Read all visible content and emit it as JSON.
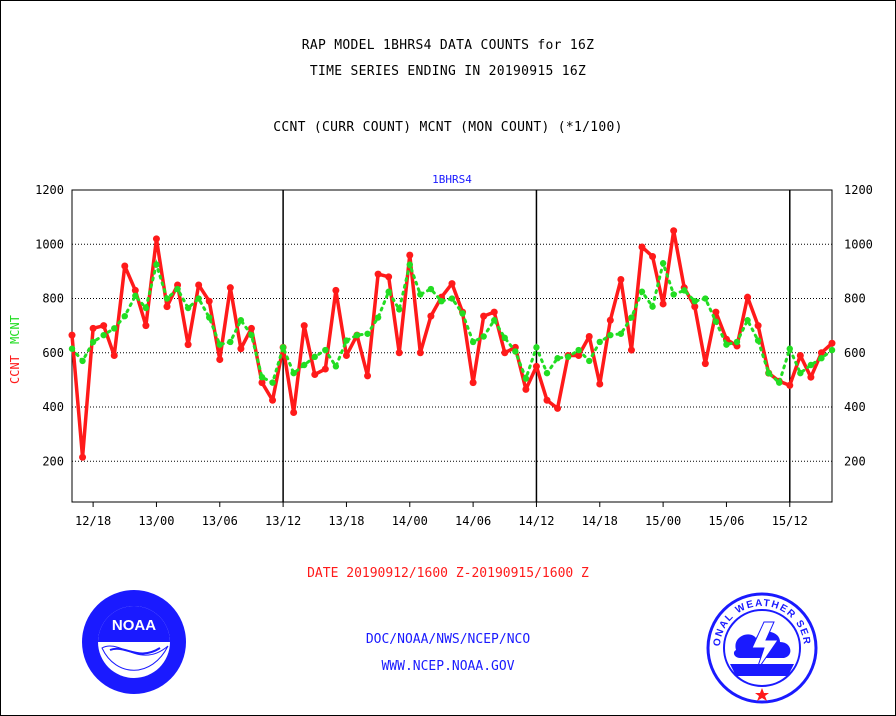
{
  "header": {
    "line1": "RAP MODEL 1BHRS4 DATA COUNTS for 16Z",
    "line2": "TIME SERIES ENDING IN 20190915 16Z",
    "line3": "CCNT (CURR COUNT) MCNT (MON COUNT) (*1/100)"
  },
  "footer": {
    "date_range": "DATE 20190912/1600 Z-20190915/1600 Z",
    "org": "DOC/NOAA/NWS/NCEP/NCO",
    "url": "WWW.NCEP.NOAA.GOV"
  },
  "logos": {
    "noaa_text": "NOAA",
    "nws_text": "NATIONAL WEATHER SERVICE"
  },
  "colors": {
    "ccnt": "#ff1a1a",
    "mcnt": "#22dd22",
    "title_blue": "#1a1aff",
    "grid": "#000000"
  },
  "chart_data": {
    "type": "line",
    "title": "1BHRS4",
    "ylabel_left_ccnt": "CCNT",
    "ylabel_left_mcnt": "MCNT",
    "ylim": [
      50,
      1200
    ],
    "yticks": [
      200,
      400,
      600,
      800,
      1000,
      1200
    ],
    "x_tick_labels": [
      "12/18",
      "13/00",
      "13/06",
      "13/12",
      "13/18",
      "14/00",
      "14/06",
      "14/12",
      "14/18",
      "15/00",
      "15/06",
      "15/12"
    ],
    "x_tick_hours": [
      2,
      8,
      14,
      20,
      26,
      32,
      38,
      44,
      50,
      56,
      62,
      68
    ],
    "major_vlines_hours": [
      20,
      44,
      68
    ],
    "x_range_hours": [
      0,
      72
    ],
    "x_start": "20190912 16Z",
    "series": [
      {
        "name": "CCNT",
        "color": "#ff1a1a",
        "style": "solid",
        "values": [
          665,
          215,
          690,
          700,
          590,
          920,
          830,
          700,
          1020,
          770,
          850,
          630,
          850,
          790,
          575,
          840,
          615,
          690,
          490,
          425,
          620,
          380,
          700,
          520,
          540,
          830,
          590,
          665,
          515,
          890,
          880,
          600,
          960,
          600,
          735,
          805,
          855,
          750,
          490,
          735,
          750,
          600,
          620,
          465,
          550,
          425,
          395,
          590,
          590,
          660,
          485,
          720,
          870,
          610,
          990,
          955,
          780,
          1050,
          840,
          770,
          560,
          750,
          650,
          625,
          805,
          700,
          525,
          495,
          480,
          590,
          510,
          600,
          635
        ]
      },
      {
        "name": "MCNT",
        "color": "#22dd22",
        "style": "dotted",
        "values": [
          615,
          570,
          640,
          665,
          690,
          735,
          810,
          765,
          925,
          800,
          835,
          765,
          800,
          730,
          630,
          640,
          720,
          665,
          510,
          490,
          620,
          525,
          555,
          585,
          610,
          550,
          645,
          665,
          670,
          730,
          825,
          760,
          925,
          815,
          835,
          790,
          800,
          745,
          640,
          660,
          720,
          655,
          605,
          505,
          620,
          525,
          580,
          585,
          610,
          570,
          640,
          665,
          670,
          730,
          825,
          770,
          930,
          815,
          830,
          790,
          800,
          715,
          630,
          640,
          720,
          645,
          525,
          490,
          615,
          525,
          555,
          580,
          610
        ]
      }
    ]
  }
}
